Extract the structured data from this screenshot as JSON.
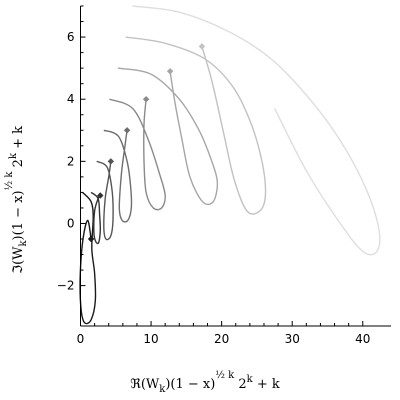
{
  "chart_data": {
    "type": "line",
    "title": "",
    "xlabel": {
      "base": "ℜ(W",
      "sub": "k",
      "mid": ")(1 − x)",
      "sup": "½ k",
      "tail1": " 2",
      "sup2": "k",
      "tail2": " + k"
    },
    "ylabel": {
      "base": "ℑ(W",
      "sub": "k",
      "mid": ")(1 − x)",
      "sup": "½ k",
      "tail1": " 2",
      "sup2": "k",
      "tail2": " + k"
    },
    "xlim": [
      0,
      44
    ],
    "ylim": [
      -3.3,
      7
    ],
    "x_ticks": [
      0,
      10,
      20,
      30,
      40
    ],
    "y_ticks": [
      -2,
      0,
      2,
      4,
      6
    ],
    "x_tick_labels": [
      "0",
      "10",
      "20",
      "30",
      "40"
    ],
    "y_tick_labels": [
      "−2",
      "0",
      "2",
      "4",
      "6"
    ],
    "grid": false,
    "legend": "none",
    "series": [
      {
        "color": "#1a1a1a",
        "marker": [
          1.5,
          -0.5
        ],
        "points": [
          [
            0.3,
            1.0
          ],
          [
            1.5,
            0.7
          ],
          [
            1.8,
            0.2
          ],
          [
            1.6,
            -0.8
          ],
          [
            2.0,
            -1.6
          ],
          [
            2.1,
            -2.5
          ],
          [
            1.5,
            -3.1
          ],
          [
            0.6,
            -3.2
          ],
          [
            0.1,
            -2.8
          ],
          [
            -0.05,
            -1.8
          ],
          [
            0.3,
            -0.6
          ],
          [
            1.0,
            0.1
          ],
          [
            1.5,
            -0.5
          ]
        ]
      },
      {
        "color": "#333333",
        "marker": [
          2.8,
          0.9
        ],
        "points": [
          [
            1.5,
            1.0
          ],
          [
            2.5,
            0.8
          ],
          [
            2.7,
            0.3
          ],
          [
            2.8,
            -0.2
          ],
          [
            2.6,
            -0.6
          ],
          [
            2.2,
            -0.6
          ],
          [
            1.9,
            -0.3
          ],
          [
            2.0,
            0.4
          ],
          [
            2.5,
            0.8
          ],
          [
            2.8,
            0.9
          ]
        ]
      },
      {
        "color": "#555555",
        "marker": [
          4.3,
          2.0
        ],
        "points": [
          [
            2.3,
            2.0
          ],
          [
            3.8,
            1.8
          ],
          [
            4.5,
            1.0
          ],
          [
            4.6,
            0.1
          ],
          [
            4.3,
            -0.4
          ],
          [
            3.6,
            -0.5
          ],
          [
            3.3,
            -0.1
          ],
          [
            3.5,
            0.8
          ],
          [
            4.0,
            1.5
          ],
          [
            4.3,
            2.0
          ]
        ]
      },
      {
        "color": "#6e6e6e",
        "marker": [
          6.6,
          3.0
        ],
        "points": [
          [
            3.3,
            3.0
          ],
          [
            5.4,
            2.8
          ],
          [
            6.6,
            2.0
          ],
          [
            7.1,
            1.2
          ],
          [
            7.2,
            0.5
          ],
          [
            6.7,
            0.1
          ],
          [
            5.9,
            0.1
          ],
          [
            5.5,
            0.5
          ],
          [
            5.8,
            1.6
          ],
          [
            6.3,
            2.5
          ],
          [
            6.6,
            3.0
          ]
        ]
      },
      {
        "color": "#8a8a8a",
        "marker": [
          9.3,
          4.0
        ],
        "points": [
          [
            4.1,
            4.0
          ],
          [
            7.4,
            3.7
          ],
          [
            9.6,
            2.7
          ],
          [
            11.2,
            1.6
          ],
          [
            12.0,
            0.9
          ],
          [
            11.5,
            0.5
          ],
          [
            10.3,
            0.5
          ],
          [
            9.3,
            1.0
          ],
          [
            9.0,
            2.0
          ],
          [
            9.0,
            3.2
          ],
          [
            9.3,
            4.0
          ]
        ]
      },
      {
        "color": "#a6a6a6",
        "marker": [
          12.7,
          4.9
        ],
        "points": [
          [
            5.3,
            5.0
          ],
          [
            10.0,
            4.8
          ],
          [
            14.0,
            4.0
          ],
          [
            16.8,
            3.0
          ],
          [
            18.6,
            2.0
          ],
          [
            19.4,
            1.3
          ],
          [
            18.8,
            0.7
          ],
          [
            17.3,
            0.7
          ],
          [
            15.5,
            1.5
          ],
          [
            14.3,
            2.8
          ],
          [
            13.3,
            4.0
          ],
          [
            12.7,
            4.9
          ]
        ]
      },
      {
        "color": "#c2c2c2",
        "marker": [
          17.2,
          5.7
        ],
        "points": [
          [
            6.4,
            6.0
          ],
          [
            12.0,
            5.8
          ],
          [
            17.6,
            5.3
          ],
          [
            21.6,
            4.4
          ],
          [
            24.2,
            3.2
          ],
          [
            25.8,
            1.9
          ],
          [
            26.2,
            0.9
          ],
          [
            25.4,
            0.4
          ],
          [
            23.6,
            0.4
          ],
          [
            21.8,
            1.4
          ],
          [
            20.2,
            3.0
          ],
          [
            18.6,
            4.6
          ],
          [
            17.2,
            5.7
          ]
        ]
      },
      {
        "color": "#dedede",
        "marker": null,
        "points": [
          [
            7.4,
            7.0
          ],
          [
            14.0,
            6.8
          ],
          [
            20.8,
            6.2
          ],
          [
            27.0,
            5.3
          ],
          [
            32.5,
            4.0
          ],
          [
            37.0,
            2.6
          ],
          [
            40.5,
            1.1
          ],
          [
            42.3,
            -0.2
          ],
          [
            42.0,
            -0.9
          ],
          [
            40.0,
            -0.9
          ],
          [
            36.5,
            0.1
          ],
          [
            32.0,
            1.7
          ],
          [
            27.5,
            3.7
          ]
        ]
      }
    ]
  }
}
